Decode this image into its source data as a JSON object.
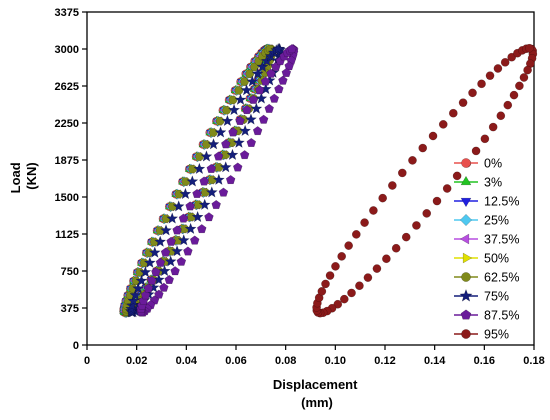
{
  "chart_data": {
    "type": "scatter",
    "title": "",
    "xlabel": "Displacement",
    "xlabel_unit": "(mm)",
    "ylabel": "Load",
    "ylabel_unit": "(KN)",
    "xlim": [
      0,
      0.18
    ],
    "ylim": [
      0,
      3375
    ],
    "x_ticks": [
      "0",
      "0.02",
      "0.04",
      "0.06",
      "0.08",
      "0.10",
      "0.12",
      "0.14",
      "0.16",
      "0.18"
    ],
    "y_ticks": [
      "0",
      "375",
      "750",
      "1125",
      "1500",
      "1875",
      "2250",
      "2625",
      "3000",
      "3375"
    ],
    "grid": false,
    "legend_position": "right",
    "series": [
      {
        "name": "0%",
        "color": "#e8504d",
        "marker": "circle",
        "min_point": [
          0.015,
          330
        ],
        "max_point": [
          0.0725,
          3000
        ],
        "half_width": 0.0045
      },
      {
        "name": "3%",
        "color": "#22c322",
        "marker": "triangle-up",
        "min_point": [
          0.0151,
          330
        ],
        "max_point": [
          0.0727,
          3000
        ],
        "half_width": 0.0045
      },
      {
        "name": "12.5%",
        "color": "#2020e0",
        "marker": "triangle-down",
        "min_point": [
          0.0153,
          330
        ],
        "max_point": [
          0.073,
          3000
        ],
        "half_width": 0.0045
      },
      {
        "name": "25%",
        "color": "#4fc8f0",
        "marker": "diamond",
        "min_point": [
          0.0155,
          330
        ],
        "max_point": [
          0.0733,
          3000
        ],
        "half_width": 0.0045
      },
      {
        "name": "37.5%",
        "color": "#b74fe0",
        "marker": "triangle-left",
        "min_point": [
          0.0157,
          330
        ],
        "max_point": [
          0.0736,
          3000
        ],
        "half_width": 0.0045
      },
      {
        "name": "50%",
        "color": "#e0e000",
        "marker": "triangle-right",
        "min_point": [
          0.0158,
          330
        ],
        "max_point": [
          0.0739,
          3000
        ],
        "half_width": 0.0045
      },
      {
        "name": "62.5%",
        "color": "#808a1a",
        "marker": "circle",
        "min_point": [
          0.016,
          330
        ],
        "max_point": [
          0.0742,
          3000
        ],
        "half_width": 0.0045
      },
      {
        "name": "75%",
        "color": "#141e7a",
        "marker": "star",
        "min_point": [
          0.018,
          330
        ],
        "max_point": [
          0.0775,
          3000
        ],
        "half_width": 0.0045
      },
      {
        "name": "87.5%",
        "color": "#6a1b9a",
        "marker": "pentagon",
        "min_point": [
          0.022,
          330
        ],
        "max_point": [
          0.083,
          3000
        ],
        "half_width": 0.0045
      },
      {
        "name": "95%",
        "color": "#8b1a1a",
        "marker": "circle",
        "min_point": [
          0.093,
          330
        ],
        "max_point": [
          0.179,
          3000
        ],
        "half_width": 0.009
      }
    ]
  }
}
